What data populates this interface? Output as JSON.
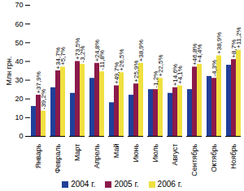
{
  "chart_data": {
    "type": "bar",
    "y_label": "Млн грн.",
    "categories": [
      "Январь",
      "Февраль",
      "Март",
      "Апрель",
      "Май",
      "Июнь",
      "Июль",
      "Август",
      "Сентябрь",
      "Октябрь",
      "Ноябрь"
    ],
    "series": [
      {
        "name": "2004 г.",
        "color": "#1f3f99",
        "values": [
          16,
          26,
          23,
          31,
          18,
          22,
          25,
          23,
          25,
          32,
          38
        ]
      },
      {
        "name": "2005 г.",
        "color": "#8b1a4a",
        "values": [
          22,
          35,
          40,
          39,
          27,
          28,
          25,
          26,
          37,
          31,
          41
        ],
        "change_labels": [
          "+37,9%",
          "+34,7%",
          "+73,5%",
          "+24,8%",
          "+49,7%",
          "+25,9%",
          "-1,2%",
          "+14,6%",
          "+46,8%",
          "-4,3%",
          "+8,7%"
        ]
      },
      {
        "name": "2006 г.",
        "color": "#f0e040",
        "values": [
          13.5,
          37,
          38.5,
          34.5,
          34,
          39,
          31,
          27,
          38.5,
          43,
          46
        ],
        "change_labels": [
          "-39,2%",
          "+5,7%",
          "-3,2%",
          "-11,8%",
          "+26,5%",
          "+38,9%",
          "+22,5%",
          "+4,1%",
          "+4,4%",
          "+38,9%",
          "+11,2%"
        ]
      }
    ],
    "ylim": [
      0,
      70
    ],
    "yticks": [
      0,
      10,
      20,
      30,
      40,
      50,
      60,
      70
    ],
    "grid": false,
    "legend": "bottom"
  }
}
